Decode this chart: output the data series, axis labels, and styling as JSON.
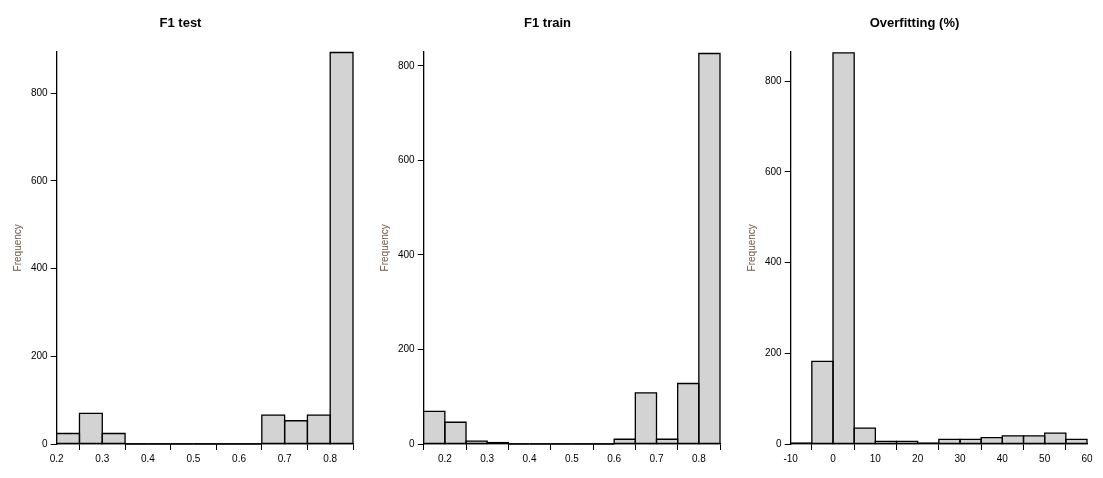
{
  "chart_data": [
    {
      "type": "histogram",
      "title": "F1 test",
      "ylabel": "Frequency",
      "bins": [
        0.2,
        0.25,
        0.3,
        0.35,
        0.4,
        0.45,
        0.5,
        0.55,
        0.6,
        0.65,
        0.7,
        0.75,
        0.8,
        0.85
      ],
      "values": [
        24,
        70,
        24,
        0,
        0,
        0,
        0,
        0,
        0,
        66,
        53,
        66,
        893
      ],
      "color": "#d3d3d3",
      "xlim": [
        0.2,
        0.85
      ],
      "xticks": [
        0.2,
        0.3,
        0.4,
        0.5,
        0.6,
        0.7,
        0.8
      ],
      "ylim": [
        0,
        895
      ],
      "yticks": [
        0,
        200,
        400,
        600,
        800
      ]
    },
    {
      "type": "histogram",
      "title": "F1 train",
      "ylabel": "Frequency",
      "bins": [
        0.15,
        0.2,
        0.25,
        0.3,
        0.35,
        0.4,
        0.45,
        0.5,
        0.55,
        0.6,
        0.65,
        0.7,
        0.75,
        0.8,
        0.85
      ],
      "values": [
        69,
        46,
        6,
        3,
        0,
        0,
        0,
        0,
        0,
        10,
        108,
        10,
        128,
        826
      ],
      "color": "#d3d3d3",
      "xlim": [
        0.15,
        0.85
      ],
      "xticks": [
        0.2,
        0.3,
        0.4,
        0.5,
        0.6,
        0.7,
        0.8
      ],
      "ylim": [
        0,
        830
      ],
      "yticks": [
        0,
        200,
        400,
        600,
        800
      ]
    },
    {
      "type": "histogram",
      "title": "Overfitting (%)",
      "ylabel": "Frequency",
      "bins": [
        -10,
        -5,
        0,
        5,
        10,
        15,
        20,
        25,
        30,
        35,
        40,
        45,
        50,
        55,
        60
      ],
      "values": [
        2,
        182,
        862,
        35,
        6,
        6,
        2,
        10,
        10,
        14,
        18,
        18,
        24,
        10
      ],
      "color": "#d3d3d3",
      "xlim": [
        -10,
        60
      ],
      "xticks": [
        -10,
        0,
        10,
        20,
        30,
        40,
        50,
        60
      ],
      "ylim": [
        0,
        865
      ],
      "yticks": [
        0,
        200,
        400,
        600,
        800
      ]
    }
  ]
}
